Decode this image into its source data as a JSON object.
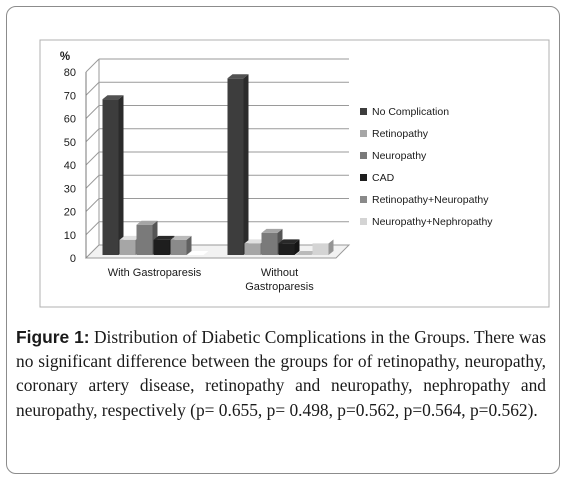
{
  "chart_data": {
    "type": "bar",
    "style": "3d-clustered-column",
    "ylabel": "%",
    "ylim": [
      0,
      80
    ],
    "yticks": [
      0,
      10,
      20,
      30,
      40,
      50,
      60,
      70,
      80
    ],
    "grid": true,
    "legend_position": "right",
    "categories": [
      "With Gastroparesis",
      "Without Gastroparesis"
    ],
    "category_lines": [
      [
        "With Gastroparesis"
      ],
      [
        "Without",
        "Gastroparesis"
      ]
    ],
    "series": [
      {
        "name": "No Complication",
        "color": "#3d3d3d",
        "values": [
          67,
          76
        ]
      },
      {
        "name": "Retinopathy",
        "color": "#a6a6a6",
        "values": [
          6.5,
          5
        ]
      },
      {
        "name": "Neuropathy",
        "color": "#7a7a7a",
        "values": [
          13,
          9.5
        ]
      },
      {
        "name": "CAD",
        "color": "#1e1e1e",
        "values": [
          6.5,
          5
        ]
      },
      {
        "name": "Retinopathy+Neuropathy",
        "color": "#8a8a8a",
        "values": [
          6.5,
          0
        ]
      },
      {
        "name": "Neuropathy+Nephropathy",
        "color": "#d4d4d4",
        "values": [
          0,
          5
        ]
      }
    ]
  },
  "caption": {
    "label": "Figure 1:",
    "text": " Distribution of Diabetic Complications in the Groups. There was no significant difference between the groups for of retinopathy, neuropathy, coronary artery disease, retinopathy and neuropathy, nephropathy and neuropathy, respectively (p= 0.655, p= 0.498, p=0.562, p=0.564, p=0.562)."
  }
}
